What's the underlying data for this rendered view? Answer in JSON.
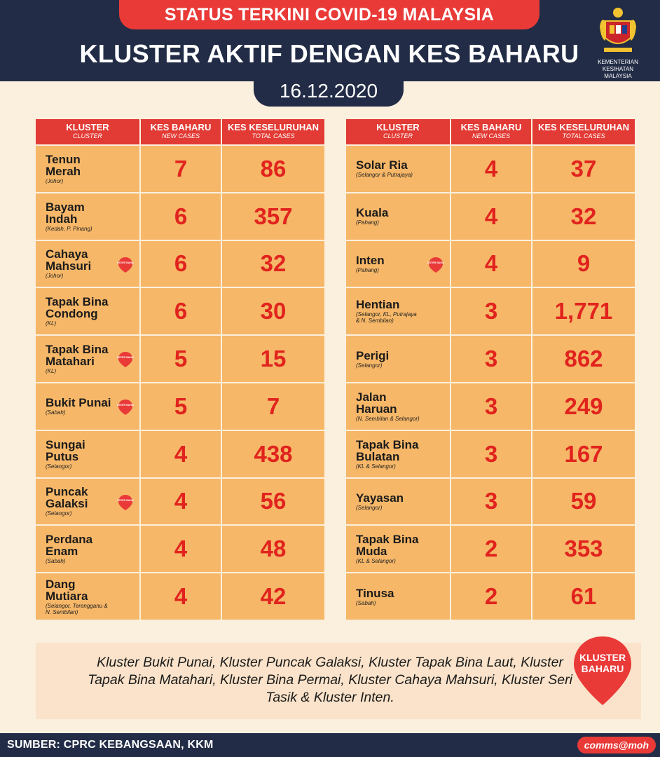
{
  "header": {
    "banner": "STATUS TERKINI COVID-19 MALAYSIA",
    "title": "KLUSTER AKTIF DENGAN KES BAHARU",
    "date": "16.12.2020",
    "ministry": "KEMENTERIAN KESIHATAN\nMALAYSIA"
  },
  "columns": [
    {
      "main": "KLUSTER",
      "sub": "CLUSTER"
    },
    {
      "main": "KES BAHARU",
      "sub": "NEW CASES"
    },
    {
      "main": "KES KESELURUHAN",
      "sub": "TOTAL CASES"
    }
  ],
  "pin_badge_text": "KLUSTER BAHARU",
  "left_rows": [
    {
      "name": "Tenun Merah",
      "region": "(Johor)",
      "new": "7",
      "total": "86",
      "is_new_cluster": false
    },
    {
      "name": "Bayam Indah",
      "region": "(Kedah, P. Pinang)",
      "new": "6",
      "total": "357",
      "is_new_cluster": false
    },
    {
      "name": "Cahaya\nMahsuri",
      "region": "(Johor)",
      "new": "6",
      "total": "32",
      "is_new_cluster": true
    },
    {
      "name": "Tapak Bina\nCondong",
      "region": "(KL)",
      "new": "6",
      "total": "30",
      "is_new_cluster": false
    },
    {
      "name": "Tapak Bina\nMatahari",
      "region": "(KL)",
      "new": "5",
      "total": "15",
      "is_new_cluster": true
    },
    {
      "name": "Bukit Punai",
      "region": "(Sabah)",
      "new": "5",
      "total": "7",
      "is_new_cluster": true
    },
    {
      "name": "Sungai Putus",
      "region": "(Selangor)",
      "new": "4",
      "total": "438",
      "is_new_cluster": false
    },
    {
      "name": "Puncak\nGalaksi",
      "region": "(Selangor)",
      "new": "4",
      "total": "56",
      "is_new_cluster": true
    },
    {
      "name": "Perdana Enam",
      "region": "(Sabah)",
      "new": "4",
      "total": "48",
      "is_new_cluster": false
    },
    {
      "name": "Dang Mutiara",
      "region": "(Selangor, Terengganu &\nN. Sembilan)",
      "new": "4",
      "total": "42",
      "is_new_cluster": false
    }
  ],
  "right_rows": [
    {
      "name": "Solar Ria",
      "region": "(Selangor & Putrajaya)",
      "new": "4",
      "total": "37",
      "is_new_cluster": false
    },
    {
      "name": "Kuala",
      "region": "(Pahang)",
      "new": "4",
      "total": "32",
      "is_new_cluster": false
    },
    {
      "name": "Inten",
      "region": "(Pahang)",
      "new": "4",
      "total": "9",
      "is_new_cluster": true
    },
    {
      "name": "Hentian",
      "region": "(Selangor, KL, Putrajaya\n& N. Sembilan)",
      "new": "3",
      "total": "1,771",
      "is_new_cluster": false
    },
    {
      "name": "Perigi",
      "region": "(Selangor)",
      "new": "3",
      "total": "862",
      "is_new_cluster": false
    },
    {
      "name": "Jalan Haruan",
      "region": "(N. Sembilan & Selangor)",
      "new": "3",
      "total": "249",
      "is_new_cluster": false
    },
    {
      "name": "Tapak Bina\nBulatan",
      "region": "(KL & Selangor)",
      "new": "3",
      "total": "167",
      "is_new_cluster": false
    },
    {
      "name": "Yayasan",
      "region": "(Selangor)",
      "new": "3",
      "total": "59",
      "is_new_cluster": false
    },
    {
      "name": "Tapak Bina\nMuda",
      "region": "(KL & Selangor)",
      "new": "2",
      "total": "353",
      "is_new_cluster": false
    },
    {
      "name": "Tinusa",
      "region": "(Sabah)",
      "new": "2",
      "total": "61",
      "is_new_cluster": false
    }
  ],
  "note": {
    "text": "Kluster Bukit Punai, Kluster Puncak Galaksi, Kluster Tapak Bina Laut, Kluster Tapak Bina Matahari, Kluster Bina Permai, Kluster Cahaya Mahsuri, Kluster Seri Tasik & Kluster Inten.",
    "badge": "KLUSTER\nBAHARU"
  },
  "footer": {
    "source": "SUMBER: CPRC KEBANGSAAN, KKM",
    "brand": "comms@moh"
  },
  "colors": {
    "navy": "#222c46",
    "red": "#e93a38",
    "row": "#f6b768",
    "number": "#e1231e",
    "background": "#fbf0de"
  }
}
